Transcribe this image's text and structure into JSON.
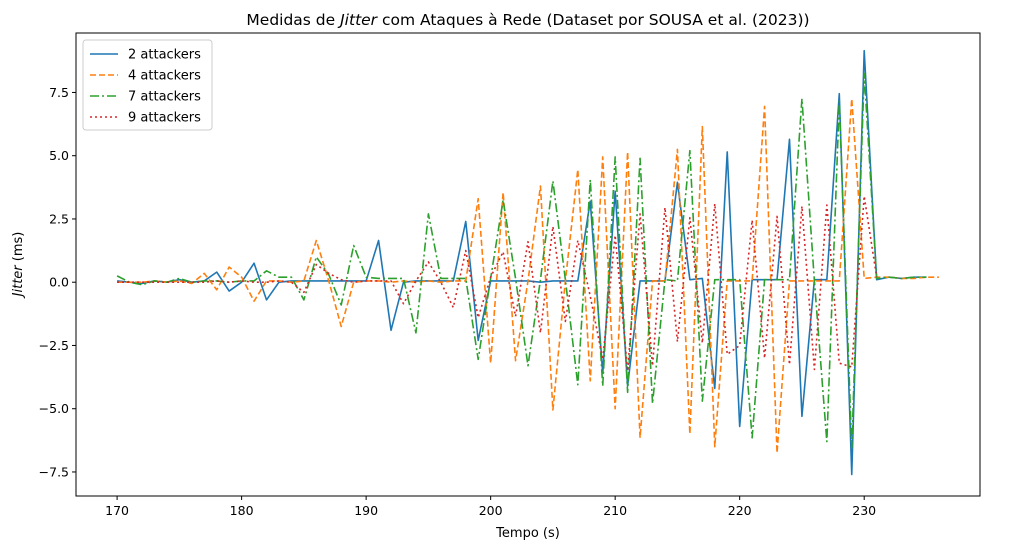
{
  "chart_data": {
    "type": "line",
    "title_pre": "Medidas de ",
    "title_italic": "Jitter",
    "title_post": " com Ataques à Rede (Dataset por SOUSA et al. (2023))",
    "xlabel": "Tempo (s)",
    "ylabel_italic": "Jitter",
    "ylabel_post": " (ms)",
    "xlim": [
      166.7,
      239.3
    ],
    "ylim": [
      -8.45,
      9.85
    ],
    "xticks": [
      170,
      180,
      190,
      200,
      210,
      220,
      230
    ],
    "xtick_labels": [
      "170",
      "180",
      "190",
      "200",
      "210",
      "220",
      "230"
    ],
    "yticks": [
      -7.5,
      -5.0,
      -2.5,
      0.0,
      2.5,
      5.0,
      7.5
    ],
    "ytick_labels": [
      "−7.5",
      "−5.0",
      "−2.5",
      "0.0",
      "2.5",
      "5.0",
      "7.5"
    ],
    "grid": false,
    "legend_position": "top-left",
    "series": [
      {
        "name": "2 attackers",
        "color": "#1f77b4",
        "dash": "solid",
        "x": [
          170,
          171,
          172,
          173,
          174,
          175,
          176,
          177,
          178,
          179,
          180,
          181,
          182,
          183,
          184,
          185,
          186,
          187,
          188,
          189,
          190,
          191,
          192,
          193,
          194,
          195,
          196,
          197,
          198,
          199,
          200,
          201,
          202,
          203,
          204,
          205,
          206,
          207,
          208,
          209,
          210,
          211,
          212,
          213,
          214,
          215,
          216,
          217,
          218,
          219,
          220,
          221,
          222,
          223,
          224,
          225,
          226,
          227,
          228,
          229,
          230,
          231,
          232,
          233,
          234,
          235
        ],
        "y": [
          0.05,
          0.0,
          -0.05,
          0.05,
          0.0,
          0.1,
          0.0,
          0.05,
          0.4,
          -0.35,
          0.0,
          0.75,
          -0.7,
          0.0,
          0.05,
          0.05,
          0.05,
          0.05,
          0.05,
          0.05,
          0.05,
          1.65,
          -1.9,
          0.0,
          0.05,
          0.05,
          0.05,
          0.05,
          2.4,
          -2.3,
          0.05,
          0.05,
          0.05,
          0.05,
          0.0,
          0.05,
          0.05,
          0.05,
          3.2,
          -3.6,
          3.6,
          -4.1,
          0.05,
          0.05,
          0.05,
          3.95,
          0.1,
          0.15,
          -4.2,
          5.15,
          -5.7,
          0.1,
          0.1,
          0.1,
          5.65,
          -5.3,
          0.1,
          0.1,
          7.45,
          -7.6,
          9.15,
          0.1,
          0.2,
          0.15,
          0.2,
          0.2
        ]
      },
      {
        "name": "4 attackers",
        "color": "#ff7f0e",
        "dash": "6 3",
        "x": [
          170,
          171,
          172,
          173,
          174,
          175,
          176,
          177,
          178,
          179,
          180,
          181,
          182,
          183,
          184,
          185,
          186,
          187,
          188,
          189,
          190,
          191,
          192,
          193,
          194,
          195,
          196,
          197,
          198,
          199,
          200,
          201,
          202,
          203,
          204,
          205,
          206,
          207,
          208,
          209,
          210,
          211,
          212,
          213,
          214,
          215,
          216,
          217,
          218,
          219,
          220,
          221,
          222,
          223,
          224,
          225,
          226,
          227,
          228,
          229,
          230,
          231,
          232,
          233,
          234,
          235,
          236
        ],
        "y": [
          0.0,
          0.0,
          0.0,
          0.05,
          0.0,
          0.05,
          -0.05,
          0.35,
          -0.3,
          0.6,
          0.2,
          -0.75,
          0.05,
          0.05,
          0.0,
          0.05,
          1.65,
          0.05,
          -1.75,
          0.0,
          0.05,
          0.05,
          0.0,
          0.05,
          0.0,
          0.05,
          0.0,
          0.05,
          0.05,
          3.3,
          -3.2,
          3.55,
          -3.1,
          0.05,
          3.8,
          -5.05,
          0.05,
          4.45,
          -3.9,
          4.95,
          -5.0,
          5.15,
          -6.15,
          0.05,
          0.05,
          5.25,
          -6.0,
          6.15,
          -6.5,
          0.05,
          0.05,
          0.05,
          6.95,
          -6.75,
          0.05,
          0.05,
          0.05,
          0.05,
          0.05,
          7.25,
          0.15,
          0.2,
          0.2,
          0.15,
          0.15,
          0.2,
          0.2
        ]
      },
      {
        "name": "7 attackers",
        "color": "#2ca02c",
        "dash": "9 3 2 3",
        "x": [
          170,
          171,
          172,
          173,
          174,
          175,
          176,
          177,
          178,
          179,
          180,
          181,
          182,
          183,
          184,
          185,
          186,
          187,
          188,
          189,
          190,
          191,
          192,
          193,
          194,
          195,
          196,
          197,
          198,
          199,
          200,
          201,
          202,
          203,
          204,
          205,
          206,
          207,
          208,
          209,
          210,
          211,
          212,
          213,
          214,
          215,
          216,
          217,
          218,
          219,
          220,
          221,
          222,
          223,
          224,
          225,
          226,
          227,
          228,
          229,
          230,
          231,
          232,
          233,
          234,
          235
        ],
        "y": [
          0.25,
          0.0,
          -0.1,
          0.05,
          0.0,
          0.15,
          0.0,
          0.05,
          0.05,
          0.0,
          0.05,
          0.05,
          0.45,
          0.2,
          0.2,
          -0.7,
          1.0,
          0.3,
          -0.9,
          1.45,
          0.2,
          0.15,
          0.15,
          0.15,
          -2.0,
          2.7,
          0.15,
          0.15,
          0.15,
          -3.05,
          0.15,
          3.25,
          0.15,
          -3.3,
          0.1,
          4.0,
          0.1,
          -4.05,
          4.05,
          -4.1,
          4.95,
          -4.35,
          4.9,
          -4.8,
          0.1,
          0.05,
          5.2,
          -4.7,
          0.1,
          0.1,
          0.1,
          -6.15,
          0.1,
          0.1,
          0.1,
          7.25,
          0.05,
          -6.3,
          7.15,
          -6.55,
          8.25,
          0.15,
          0.2,
          0.15,
          0.2,
          0.2
        ]
      },
      {
        "name": "9 attackers",
        "color": "#d62728",
        "dash": "2 3",
        "x": [
          170,
          171,
          172,
          173,
          174,
          175,
          176,
          177,
          178,
          179,
          180,
          181,
          182,
          183,
          184,
          185,
          186,
          187,
          188,
          189,
          190,
          191,
          192,
          193,
          194,
          195,
          196,
          197,
          198,
          199,
          200,
          201,
          202,
          203,
          204,
          205,
          206,
          207,
          208,
          209,
          210,
          211,
          212,
          213,
          214,
          215,
          216,
          217,
          218,
          219,
          220,
          221,
          222,
          223,
          224,
          225,
          226,
          227,
          228,
          229,
          230,
          231
        ],
        "y": [
          0.0,
          0.0,
          0.0,
          0.0,
          0.0,
          0.0,
          0.0,
          0.0,
          0.05,
          0.0,
          0.05,
          0.0,
          0.0,
          0.05,
          0.0,
          -0.4,
          0.7,
          0.35,
          0.1,
          0.0,
          0.05,
          0.05,
          0.05,
          -0.85,
          0.05,
          0.8,
          0.0,
          -1.0,
          1.25,
          -1.4,
          0.2,
          1.2,
          -1.35,
          1.6,
          -2.0,
          2.2,
          -1.55,
          1.65,
          -0.55,
          -3.05,
          1.85,
          -3.5,
          2.7,
          -3.3,
          2.95,
          -2.35,
          2.55,
          -2.4,
          3.1,
          -2.85,
          -2.5,
          2.45,
          -3.0,
          2.6,
          -3.25,
          3.0,
          -3.45,
          3.05,
          -3.2,
          -3.35,
          3.4,
          0.2
        ]
      }
    ]
  }
}
